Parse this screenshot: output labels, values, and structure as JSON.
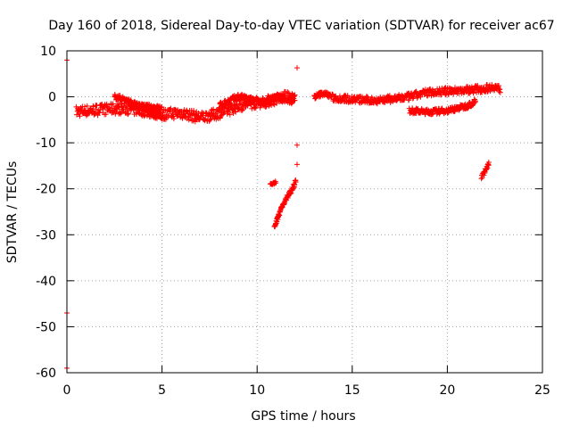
{
  "chart_data": {
    "type": "scatter",
    "title": "Day 160 of 2018, Sidereal Day-to-day VTEC variation (SDTVAR) for receiver ac67",
    "xlabel": "GPS time / hours",
    "ylabel": "SDTVAR / TECUs",
    "xlim": [
      0,
      25
    ],
    "ylim": [
      -60,
      10
    ],
    "xticks": [
      0,
      5,
      10,
      15,
      20,
      25
    ],
    "yticks": [
      10,
      0,
      -10,
      -20,
      -30,
      -40,
      -50,
      -60
    ],
    "grid": true,
    "marker": "+",
    "series": [
      {
        "name": "SDTVAR",
        "color": "#ff0000",
        "bands": [
          {
            "x": [
              0.5,
              2.0,
              3.0,
              4.0,
              5.0,
              6.0,
              7.0,
              7.6,
              8.4,
              9.0,
              9.6,
              10.5,
              11.5,
              12.0
            ],
            "y": [
              -3.2,
              -2.7,
              -2.5,
              -3.0,
              -3.8,
              -3.5,
              -4.5,
              -4.0,
              -3.0,
              -2.0,
              -1.5,
              -1.0,
              0.0,
              -0.5
            ],
            "spread": 1.2
          },
          {
            "x": [
              2.5,
              3.0,
              3.5,
              4.0,
              4.5,
              5.0
            ],
            "y": [
              0.0,
              -0.5,
              -1.5,
              -2.5,
              -3.5,
              -4.5
            ],
            "spread": 0.6
          },
          {
            "x": [
              3.5,
              4.0,
              4.5,
              5.0
            ],
            "y": [
              -2.0,
              -2.0,
              -2.2,
              -2.5
            ],
            "spread": 0.5
          },
          {
            "x": [
              8.0,
              8.5,
              9.0,
              9.5,
              10.0,
              10.5,
              11.0,
              11.5,
              12.0
            ],
            "y": [
              -2.0,
              -1.0,
              0.0,
              -0.5,
              -1.0,
              -1.0,
              0.0,
              -0.5,
              -1.0
            ],
            "spread": 0.7
          },
          {
            "x": [
              13.0,
              13.5,
              14.0
            ],
            "y": [
              0.0,
              0.8,
              0.0
            ],
            "spread": 0.5
          },
          {
            "x": [
              14.0,
              15.0,
              16.0,
              17.0,
              17.5,
              18.0,
              18.5,
              19.0,
              20.0,
              21.0,
              22.0,
              22.5,
              22.8
            ],
            "y": [
              -0.2,
              -0.5,
              -0.8,
              -0.5,
              -0.3,
              0.0,
              0.5,
              1.0,
              1.2,
              1.5,
              1.8,
              2.2,
              1.5
            ],
            "spread": 0.8
          },
          {
            "x": [
              18.0,
              19.0,
              20.0,
              21.0,
              21.5
            ],
            "y": [
              -3.0,
              -3.3,
              -3.0,
              -2.0,
              -1.0
            ],
            "spread": 0.6
          },
          {
            "x": [
              10.9,
              11.1,
              11.3,
              11.5,
              11.7,
              11.9,
              12.05
            ],
            "y": [
              -28.5,
              -26.0,
              -24.0,
              -22.5,
              -21.0,
              -19.5,
              -18.0
            ],
            "spread": 0.5
          },
          {
            "x": [
              21.8,
              22.0,
              22.2
            ],
            "y": [
              -17.5,
              -16.0,
              -14.5
            ],
            "spread": 0.4
          },
          {
            "x": [
              10.7,
              11.0
            ],
            "y": [
              -19.0,
              -18.5
            ],
            "spread": 0.3
          }
        ],
        "points": [
          {
            "x": 0.0,
            "y": 8.0
          },
          {
            "x": 0.0,
            "y": -47.0
          },
          {
            "x": 0.0,
            "y": -59.0
          },
          {
            "x": 12.1,
            "y": 6.3
          },
          {
            "x": 12.1,
            "y": -10.5
          },
          {
            "x": 12.1,
            "y": -14.7
          }
        ]
      }
    ]
  }
}
